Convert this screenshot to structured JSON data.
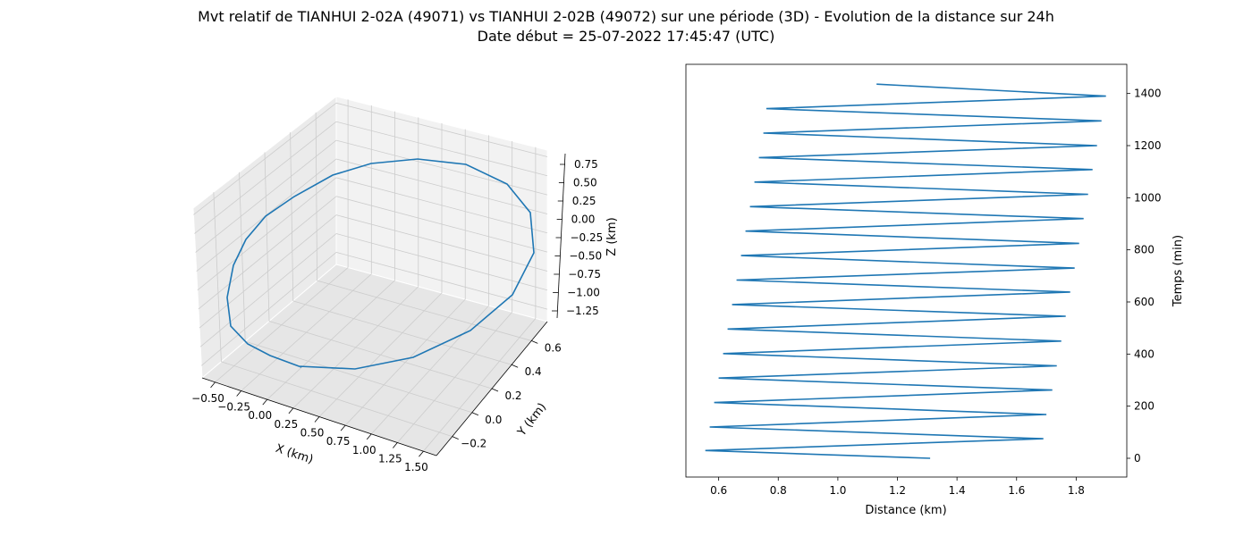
{
  "figure": {
    "title_line1": "Mvt relatif de TIANHUI 2-02A (49071) vs TIANHUI 2-02B (49072) sur une période (3D) - Evolution de la distance sur 24h",
    "title_line2": "Date début = 25-07-2022 17:45:47 (UTC)"
  },
  "colors": {
    "series": "#1f77b4",
    "pane": "#f2f2f2",
    "grid": "#cccccc"
  },
  "chart_data": [
    {
      "type": "line",
      "projection": "3d",
      "xlabel": "X (km)",
      "ylabel": "Y (km)",
      "zlabel": "Z (km)",
      "xlim": [
        -0.6,
        1.6
      ],
      "ylim": [
        -0.3,
        0.7
      ],
      "zlim": [
        -1.35,
        0.85
      ],
      "x_ticks": [
        "−0.50",
        "−0.25",
        "0.00",
        "0.25",
        "0.50",
        "0.75",
        "1.00",
        "1.25",
        "1.50"
      ],
      "y_ticks": [
        "−0.2",
        "0.0",
        "0.2",
        "0.4",
        "0.6"
      ],
      "z_ticks": [
        "0.75",
        "0.50",
        "0.25",
        "0.00",
        "−0.25",
        "−0.50",
        "−0.75",
        "−1.00",
        "−1.25"
      ],
      "grid": true
    },
    {
      "type": "line",
      "xlabel": "Distance (km)",
      "ylabel": "Temps (min)",
      "xlim": [
        0.49,
        1.97
      ],
      "ylim": [
        -72,
        1512
      ],
      "x_ticks": [
        "0.6",
        "0.8",
        "1.0",
        "1.2",
        "1.4",
        "1.6",
        "1.8"
      ],
      "y_ticks": [
        "0",
        "200",
        "400",
        "600",
        "800",
        "1000",
        "1200",
        "1400"
      ],
      "y_tick_values": [
        0,
        200,
        400,
        600,
        800,
        1000,
        1200,
        1400
      ],
      "x_tick_values": [
        0.6,
        0.8,
        1.0,
        1.2,
        1.4,
        1.6,
        1.8
      ],
      "grid": false,
      "x": [
        1.31,
        0.555,
        1.69,
        0.57,
        1.7,
        0.585,
        1.72,
        0.6,
        1.735,
        0.615,
        1.75,
        0.63,
        1.765,
        0.645,
        1.78,
        0.66,
        1.795,
        0.675,
        1.81,
        0.69,
        1.825,
        0.705,
        1.84,
        0.72,
        1.855,
        0.735,
        1.87,
        0.75,
        1.885,
        0.76,
        1.9,
        1.13
      ],
      "y": [
        0,
        30,
        75,
        120,
        168,
        214,
        262,
        308,
        355,
        402,
        450,
        496,
        545,
        590,
        638,
        684,
        730,
        778,
        825,
        872,
        920,
        966,
        1013,
        1060,
        1108,
        1154,
        1200,
        1248,
        1295,
        1342,
        1390,
        1436
      ]
    }
  ]
}
